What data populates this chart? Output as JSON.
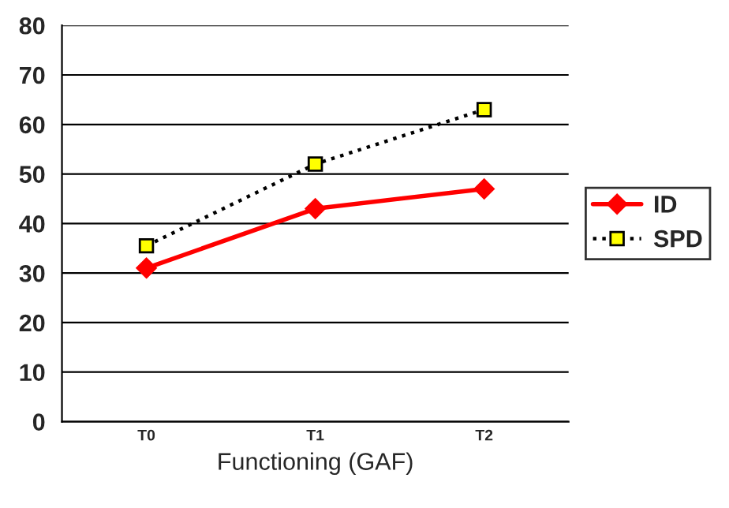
{
  "chart_data": {
    "type": "line",
    "xlabel": "Functioning (GAF)",
    "categories": [
      "T0",
      "T1",
      "T2"
    ],
    "series": [
      {
        "name": "ID",
        "color": "#ff0000",
        "values": [
          31,
          43,
          47
        ],
        "marker": "diamond",
        "line_style": "solid"
      },
      {
        "name": "SPD",
        "color": "#000000",
        "values": [
          35.5,
          52,
          63
        ],
        "marker": "square",
        "line_style": "dotted"
      }
    ],
    "ylim": [
      0,
      80
    ],
    "yticks": [
      0,
      10,
      20,
      30,
      40,
      50,
      60,
      70,
      80
    ],
    "grid": "y",
    "legend": "right"
  }
}
